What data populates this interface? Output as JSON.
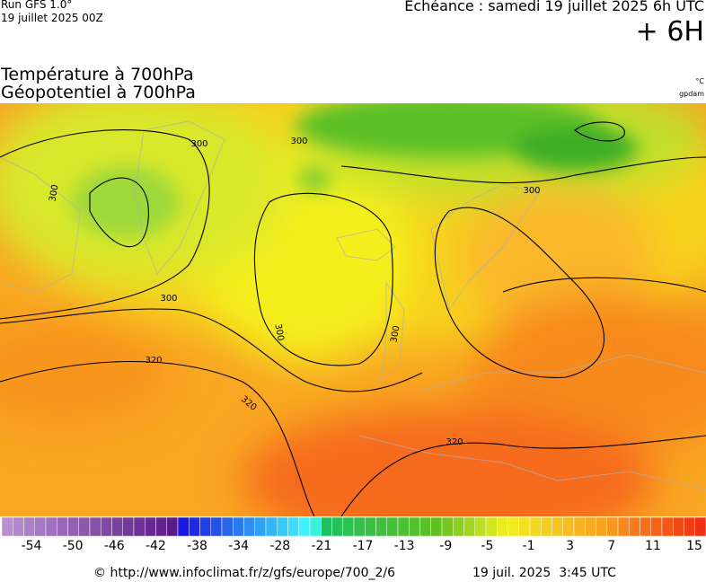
{
  "header": {
    "run": "Run GFS 1.0°",
    "date": "19 juillet 2025 00Z",
    "echeance": "Echéance : samedi 19 juillet 2025 6h UTC",
    "offset": "+ 6H"
  },
  "titles": {
    "line1": "Température à 700hPa",
    "line2": "Géopotentiel à 700hPa",
    "unit1": "°C",
    "unit2": "gpdam"
  },
  "map": {
    "contour_labels": [
      "300",
      "300",
      "300",
      "300",
      "300",
      "300",
      "300",
      "320",
      "320",
      "320"
    ]
  },
  "colorbar": {
    "labels": [
      "-54",
      "-50",
      "-46",
      "-42",
      "-38",
      "-34",
      "-28",
      "-21",
      "-17",
      "-13",
      "-9",
      "-5",
      "-1",
      "3",
      "7",
      "11",
      "15"
    ]
  },
  "footer": {
    "source": "© http://www.infoclimat.fr/z/gfs/europe/700_2/6",
    "time": "19 juil. 2025  3:45 UTC"
  }
}
